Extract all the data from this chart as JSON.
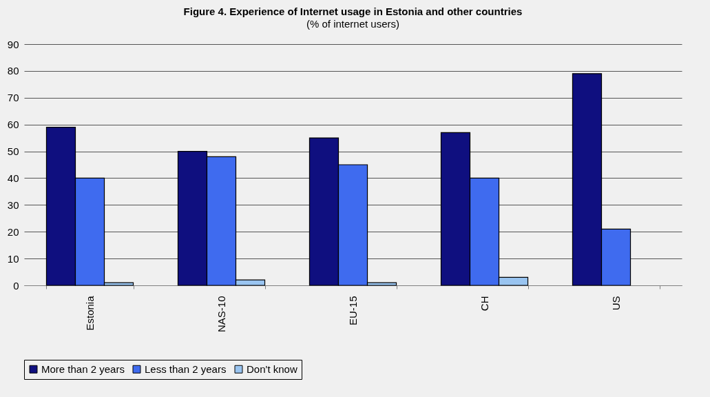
{
  "chart_data": {
    "type": "bar",
    "title": "Figure 4. Experience of Internet usage in Estonia and other countries",
    "subtitle": "(% of internet users)",
    "categories": [
      "Estonia",
      "NAS-10",
      "EU-15",
      "CH",
      "US"
    ],
    "series": [
      {
        "name": "More than 2 years",
        "color": "#0f0f7f",
        "values": [
          59,
          50,
          55,
          57,
          79
        ]
      },
      {
        "name": "Less than 2 years",
        "color": "#3f6bef",
        "values": [
          40,
          48,
          45,
          40,
          21
        ]
      },
      {
        "name": "Don't know",
        "color": "#99c4f0",
        "values": [
          1,
          2,
          1,
          3,
          null
        ]
      }
    ],
    "ylim": [
      0,
      90
    ],
    "yticks": [
      0,
      10,
      20,
      30,
      40,
      50,
      60,
      70,
      80,
      90
    ],
    "grid": "y",
    "legend": "bottom"
  }
}
